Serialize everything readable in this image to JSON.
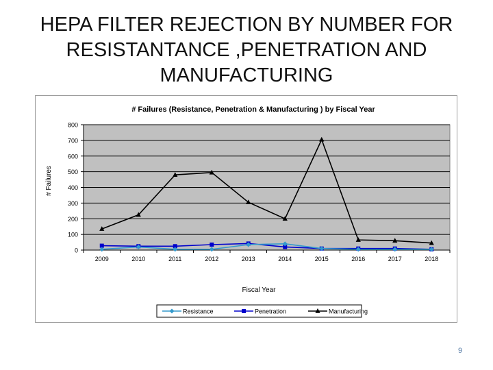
{
  "slide": {
    "title": "HEPA FILTER REJECTION BY NUMBER FOR\nRESISTANTANCE ,PENETRATION AND\nMANUFACTURING",
    "page_number": "9"
  },
  "chart_data": {
    "type": "line",
    "title": "# Failures (Resistance, Penetration & Manufacturing ) by Fiscal Year",
    "xlabel": "Fiscal Year",
    "ylabel": "# Failures",
    "categories": [
      "2009",
      "2010",
      "2011",
      "2012",
      "2013",
      "2014",
      "2015",
      "2016",
      "2017",
      "2018"
    ],
    "ylim": [
      0,
      800
    ],
    "yticks": [
      0,
      100,
      200,
      300,
      400,
      500,
      600,
      700,
      800
    ],
    "grid": true,
    "legend": "bottom",
    "plot_background": "#c0c0c0",
    "series": [
      {
        "name": "Resistance",
        "values": [
          5,
          20,
          5,
          5,
          35,
          40,
          10,
          5,
          5,
          5
        ],
        "color": "#3399cc",
        "marker": "diamond"
      },
      {
        "name": "Penetration",
        "values": [
          28,
          25,
          25,
          35,
          42,
          20,
          10,
          10,
          10,
          5
        ],
        "color": "#0000cc",
        "marker": "square"
      },
      {
        "name": "Manufacturing",
        "values": [
          135,
          225,
          480,
          495,
          305,
          200,
          705,
          65,
          60,
          45
        ],
        "color": "#000000",
        "marker": "triangle"
      }
    ]
  }
}
